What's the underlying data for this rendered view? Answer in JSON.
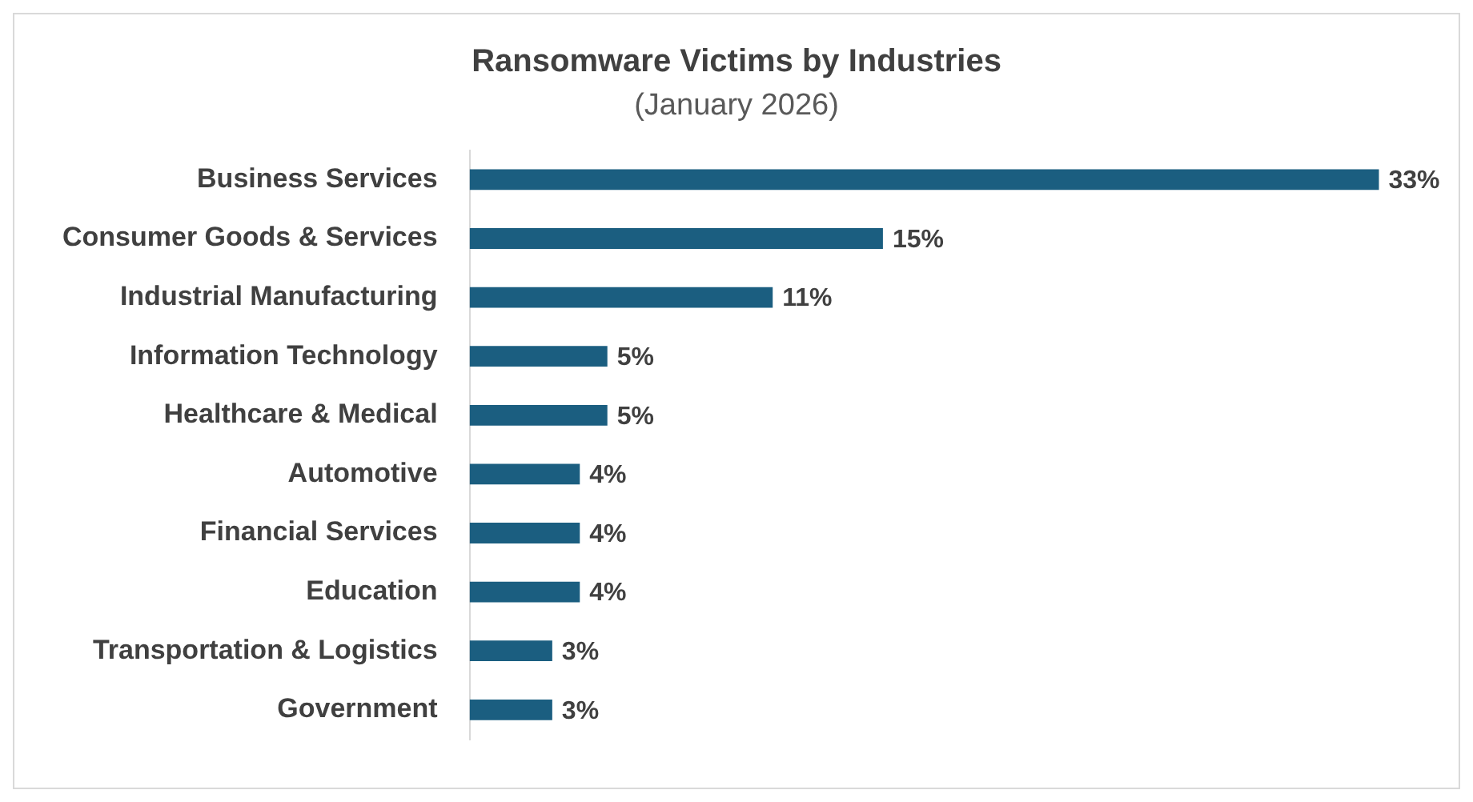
{
  "chart_data": {
    "type": "bar",
    "orientation": "horizontal",
    "title": "Ransomware Victims by Industries",
    "subtitle": "(January 2026)",
    "categories": [
      "Business Services",
      "Consumer Goods & Services",
      "Industrial Manufacturing",
      "Information Technology",
      "Healthcare & Medical",
      "Automotive",
      "Financial Services",
      "Education",
      "Transportation & Logistics",
      "Government"
    ],
    "values": [
      33,
      15,
      11,
      5,
      5,
      4,
      4,
      4,
      3,
      3
    ],
    "value_labels": [
      "33%",
      "15%",
      "11%",
      "5%",
      "5%",
      "4%",
      "4%",
      "4%",
      "3%",
      "3%"
    ],
    "color": "#1b5e80"
  }
}
